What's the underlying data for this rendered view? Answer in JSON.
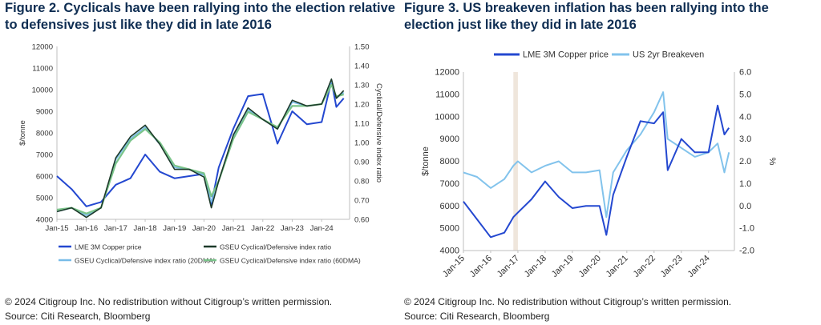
{
  "figures": [
    {
      "title": "Figure 2. Cyclicals have been rallying into the election relative to defensives just like they did in late 2016",
      "copyright": "© 2024 Citigroup Inc. No redistribution without Citigroup’s written permission.",
      "source": "Source: Citi Research, Bloomberg"
    },
    {
      "title": "Figure 3. US breakeven inflation has been rallying into the election just like they did in late 2016",
      "copyright": "© 2024 Citigroup Inc. No redistribution without Citigroup’s written permission.",
      "source": "Source: Citi Research, Bloomberg"
    }
  ],
  "colors": {
    "copper": "#2448d0",
    "ratio": "#1d3a2a",
    "ratio20": "#78bce8",
    "ratio60": "#7ac48a",
    "breakeven": "#82c3ec",
    "shade": "#efe6dc",
    "title": "#0e2d52"
  },
  "chart_data": [
    {
      "type": "line",
      "title": "",
      "x": [
        "Jan-15",
        "Jul-15",
        "Jan-16",
        "Jul-16",
        "Jan-17",
        "Jul-17",
        "Jan-18",
        "Jul-18",
        "Jan-19",
        "Jul-19",
        "Jan-20",
        "Apr-20",
        "Jul-20",
        "Jan-21",
        "Jul-21",
        "Jan-22",
        "Jul-22",
        "Jan-23",
        "Jul-23",
        "Jan-24",
        "May-24",
        "Jul-24",
        "Oct-24"
      ],
      "xticks": [
        "Jan-15",
        "Jan-16",
        "Jan-17",
        "Jan-18",
        "Jan-19",
        "Jan-20",
        "Jan-21",
        "Jan-22",
        "Jan-23",
        "Jan-24"
      ],
      "ylabel": "$/tonne",
      "ylabel_right": "Cyclical/Defensive index ratio",
      "ylim": [
        4000,
        12000
      ],
      "ylim_right": [
        0.6,
        1.5
      ],
      "yticks": [
        "4000",
        "5000",
        "6000",
        "7000",
        "8000",
        "9000",
        "10000",
        "11000",
        "12000"
      ],
      "yticks_right": [
        "0.60",
        "0.70",
        "0.80",
        "0.90",
        "1.00",
        "1.10",
        "1.20",
        "1.30",
        "1.40",
        "1.50"
      ],
      "series": [
        {
          "name": "LME 3M Copper price",
          "axis": "left",
          "values": [
            6000,
            5400,
            4600,
            4800,
            5600,
            5900,
            7000,
            6200,
            5900,
            6000,
            6100,
            4700,
            6400,
            8200,
            9700,
            9800,
            7500,
            9000,
            8400,
            8500,
            10400,
            9200,
            9600
          ]
        },
        {
          "name": "GSEU Cyclical/Defensive index ratio",
          "axis": "right",
          "values": [
            0.64,
            0.66,
            0.61,
            0.66,
            0.92,
            1.03,
            1.09,
            0.99,
            0.86,
            0.86,
            0.82,
            0.66,
            0.8,
            1.04,
            1.18,
            1.12,
            1.07,
            1.22,
            1.19,
            1.2,
            1.33,
            1.23,
            1.27
          ]
        },
        {
          "name": "GSEU Cyclical/Defensive index ratio (20DMA)",
          "axis": "right",
          "values": [
            0.64,
            0.66,
            0.62,
            0.66,
            0.91,
            1.02,
            1.08,
            0.99,
            0.87,
            0.86,
            0.83,
            0.69,
            0.8,
            1.03,
            1.17,
            1.12,
            1.07,
            1.21,
            1.19,
            1.2,
            1.32,
            1.23,
            1.26
          ]
        },
        {
          "name": "GSEU Cyclical/Defensive index ratio (60DMA)",
          "axis": "right",
          "values": [
            0.65,
            0.66,
            0.63,
            0.66,
            0.89,
            1.01,
            1.07,
            1.0,
            0.88,
            0.86,
            0.84,
            0.72,
            0.8,
            1.02,
            1.16,
            1.12,
            1.08,
            1.19,
            1.19,
            1.2,
            1.3,
            1.24,
            1.25
          ]
        }
      ],
      "legend": [
        "LME 3M Copper price",
        "GSEU Cyclical/Defensive index ratio",
        "GSEU Cyclical/Defensive index ratio (20DMA)",
        "GSEU Cyclical/Defensive index ratio (60DMA)"
      ],
      "legend_position": "bottom"
    },
    {
      "type": "line",
      "title": "",
      "x": [
        "Jan-15",
        "Jul-15",
        "Jan-16",
        "Jul-16",
        "Nov-16",
        "Jan-17",
        "Jul-17",
        "Jan-18",
        "Jul-18",
        "Jan-19",
        "Jul-19",
        "Jan-20",
        "Apr-20",
        "Jul-20",
        "Jan-21",
        "Jul-21",
        "Jan-22",
        "May-22",
        "Jul-22",
        "Jan-23",
        "Jul-23",
        "Jan-24",
        "May-24",
        "Aug-24",
        "Oct-24"
      ],
      "xticks": [
        "Jan-15",
        "Jan-16",
        "Jan-17",
        "Jan-18",
        "Jan-19",
        "Jan-20",
        "Jan-21",
        "Jan-22",
        "Jan-23",
        "Jan-24"
      ],
      "ylabel": "$/tonne",
      "ylabel_right": "%",
      "ylim": [
        4000,
        12000
      ],
      "ylim_right": [
        -2.0,
        6.0
      ],
      "yticks": [
        "4000",
        "5000",
        "6000",
        "7000",
        "8000",
        "9000",
        "10000",
        "11000",
        "12000"
      ],
      "yticks_right": [
        "-2.0",
        "-1.0",
        "0.0",
        "1.0",
        "2.0",
        "3.0",
        "4.0",
        "5.0",
        "6.0"
      ],
      "shaded_region": [
        "Nov-16",
        "Jan-17"
      ],
      "series": [
        {
          "name": "LME 3M Copper price",
          "axis": "left",
          "values": [
            6200,
            5400,
            4600,
            4800,
            5500,
            5700,
            6300,
            7100,
            6400,
            5900,
            6000,
            6000,
            4700,
            6500,
            8200,
            9800,
            9700,
            10200,
            7600,
            9000,
            8400,
            8400,
            10500,
            9200,
            9500
          ]
        },
        {
          "name": "US 2yr Breakeven",
          "axis": "right",
          "values": [
            1.5,
            1.3,
            0.8,
            1.2,
            1.8,
            2.0,
            1.5,
            1.8,
            2.0,
            1.5,
            1.5,
            1.6,
            -0.5,
            1.5,
            2.5,
            3.2,
            4.2,
            5.1,
            3.0,
            2.6,
            2.2,
            2.4,
            2.8,
            1.5,
            2.4
          ]
        }
      ],
      "legend": [
        "LME 3M Copper price",
        "US 2yr Breakeven"
      ],
      "legend_position": "top"
    }
  ]
}
